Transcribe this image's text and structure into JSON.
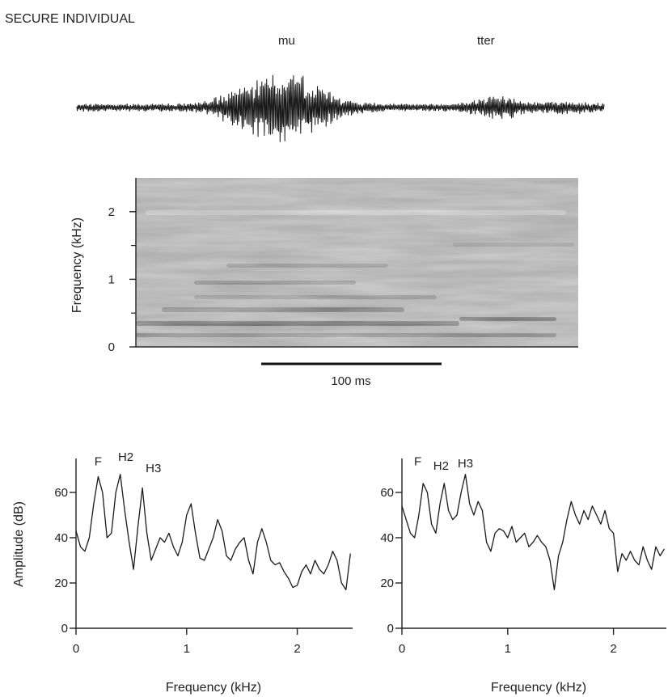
{
  "figure_title": "SECURE INDIVIDUAL",
  "waveform": {
    "segment_labels": [
      "mu",
      "tter"
    ]
  },
  "spectrogram": {
    "ylabel": "Frequency (kHz)",
    "yticks": [
      0,
      1,
      2
    ],
    "ylim": [
      0,
      2.5
    ],
    "scale_bar_label": "100 ms"
  },
  "chart_data": [
    {
      "type": "line",
      "xlabel": "Frequency (kHz)",
      "ylabel": "Amplitude (dB)",
      "xlim": [
        0,
        2.5
      ],
      "ylim": [
        0,
        75
      ],
      "xticks": [
        0,
        1,
        2
      ],
      "yticks": [
        0,
        20,
        40,
        60
      ],
      "annotations": [
        {
          "text": "F",
          "x": 0.2,
          "y": 72
        },
        {
          "text": "H2",
          "x": 0.45,
          "y": 74
        },
        {
          "text": "H3",
          "x": 0.7,
          "y": 69
        }
      ],
      "x": [
        0.0,
        0.04,
        0.08,
        0.12,
        0.16,
        0.2,
        0.24,
        0.28,
        0.32,
        0.36,
        0.4,
        0.44,
        0.48,
        0.52,
        0.56,
        0.6,
        0.64,
        0.68,
        0.72,
        0.76,
        0.8,
        0.84,
        0.88,
        0.92,
        0.96,
        1.0,
        1.04,
        1.08,
        1.12,
        1.16,
        1.2,
        1.24,
        1.28,
        1.32,
        1.36,
        1.4,
        1.44,
        1.48,
        1.52,
        1.56,
        1.6,
        1.64,
        1.68,
        1.72,
        1.76,
        1.8,
        1.84,
        1.88,
        1.92,
        1.96,
        2.0,
        2.04,
        2.08,
        2.12,
        2.16,
        2.2,
        2.24,
        2.28,
        2.32,
        2.36,
        2.4,
        2.44,
        2.48
      ],
      "y": [
        43,
        36,
        34,
        40,
        55,
        67,
        60,
        40,
        42,
        60,
        68,
        52,
        38,
        26,
        45,
        62,
        42,
        30,
        35,
        40,
        38,
        42,
        36,
        32,
        38,
        50,
        55,
        42,
        31,
        30,
        35,
        40,
        48,
        43,
        32,
        30,
        35,
        38,
        40,
        30,
        24,
        38,
        44,
        38,
        30,
        28,
        29,
        25,
        22,
        18,
        19,
        25,
        28,
        24,
        30,
        26,
        24,
        28,
        34,
        30,
        20,
        17,
        33
      ]
    },
    {
      "type": "line",
      "xlabel": "Frequency (kHz)",
      "ylabel": "",
      "xlim": [
        0,
        2.5
      ],
      "ylim": [
        0,
        75
      ],
      "xticks": [
        0,
        1,
        2
      ],
      "yticks": [
        0,
        20,
        40,
        60
      ],
      "annotations": [
        {
          "text": "F",
          "x": 0.15,
          "y": 72
        },
        {
          "text": "H2",
          "x": 0.37,
          "y": 70
        },
        {
          "text": "H3",
          "x": 0.6,
          "y": 71
        }
      ],
      "x": [
        0.0,
        0.04,
        0.08,
        0.12,
        0.16,
        0.2,
        0.24,
        0.28,
        0.32,
        0.36,
        0.4,
        0.44,
        0.48,
        0.52,
        0.56,
        0.6,
        0.64,
        0.68,
        0.72,
        0.76,
        0.8,
        0.84,
        0.88,
        0.92,
        0.96,
        1.0,
        1.04,
        1.08,
        1.12,
        1.16,
        1.2,
        1.24,
        1.28,
        1.32,
        1.36,
        1.4,
        1.44,
        1.48,
        1.52,
        1.56,
        1.6,
        1.64,
        1.68,
        1.72,
        1.76,
        1.8,
        1.84,
        1.88,
        1.92,
        1.96,
        2.0,
        2.04,
        2.08,
        2.12,
        2.16,
        2.2,
        2.24,
        2.28,
        2.32,
        2.36,
        2.4,
        2.44,
        2.48
      ],
      "y": [
        54,
        48,
        42,
        40,
        50,
        64,
        60,
        46,
        42,
        55,
        64,
        52,
        48,
        50,
        60,
        68,
        55,
        50,
        56,
        52,
        38,
        34,
        42,
        44,
        43,
        40,
        45,
        38,
        40,
        42,
        36,
        38,
        41,
        38,
        36,
        30,
        17,
        32,
        38,
        48,
        56,
        50,
        46,
        52,
        48,
        54,
        50,
        46,
        52,
        44,
        42,
        25,
        33,
        30,
        34,
        30,
        28,
        36,
        30,
        26,
        36,
        32,
        35
      ]
    }
  ]
}
